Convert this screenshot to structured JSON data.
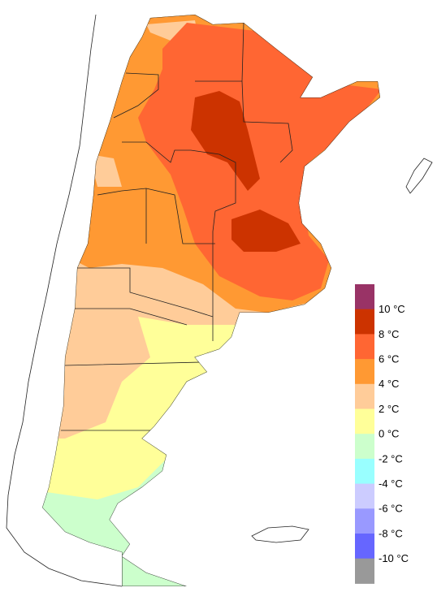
{
  "legend": {
    "labels": [
      "10 °C",
      "8 °C",
      "6 °C",
      "4 °C",
      "2 °C",
      "0 °C",
      "-2 °C",
      "-4 °C",
      "-6 °C",
      "-8 °C",
      "-10 °C"
    ],
    "colors": [
      "#993366",
      "#cc3300",
      "#ff6633",
      "#ff9933",
      "#ffcc99",
      "#ffff99",
      "#ccffcc",
      "#99ffff",
      "#ccccff",
      "#9999ff",
      "#6666ff",
      "#999999"
    ]
  }
}
